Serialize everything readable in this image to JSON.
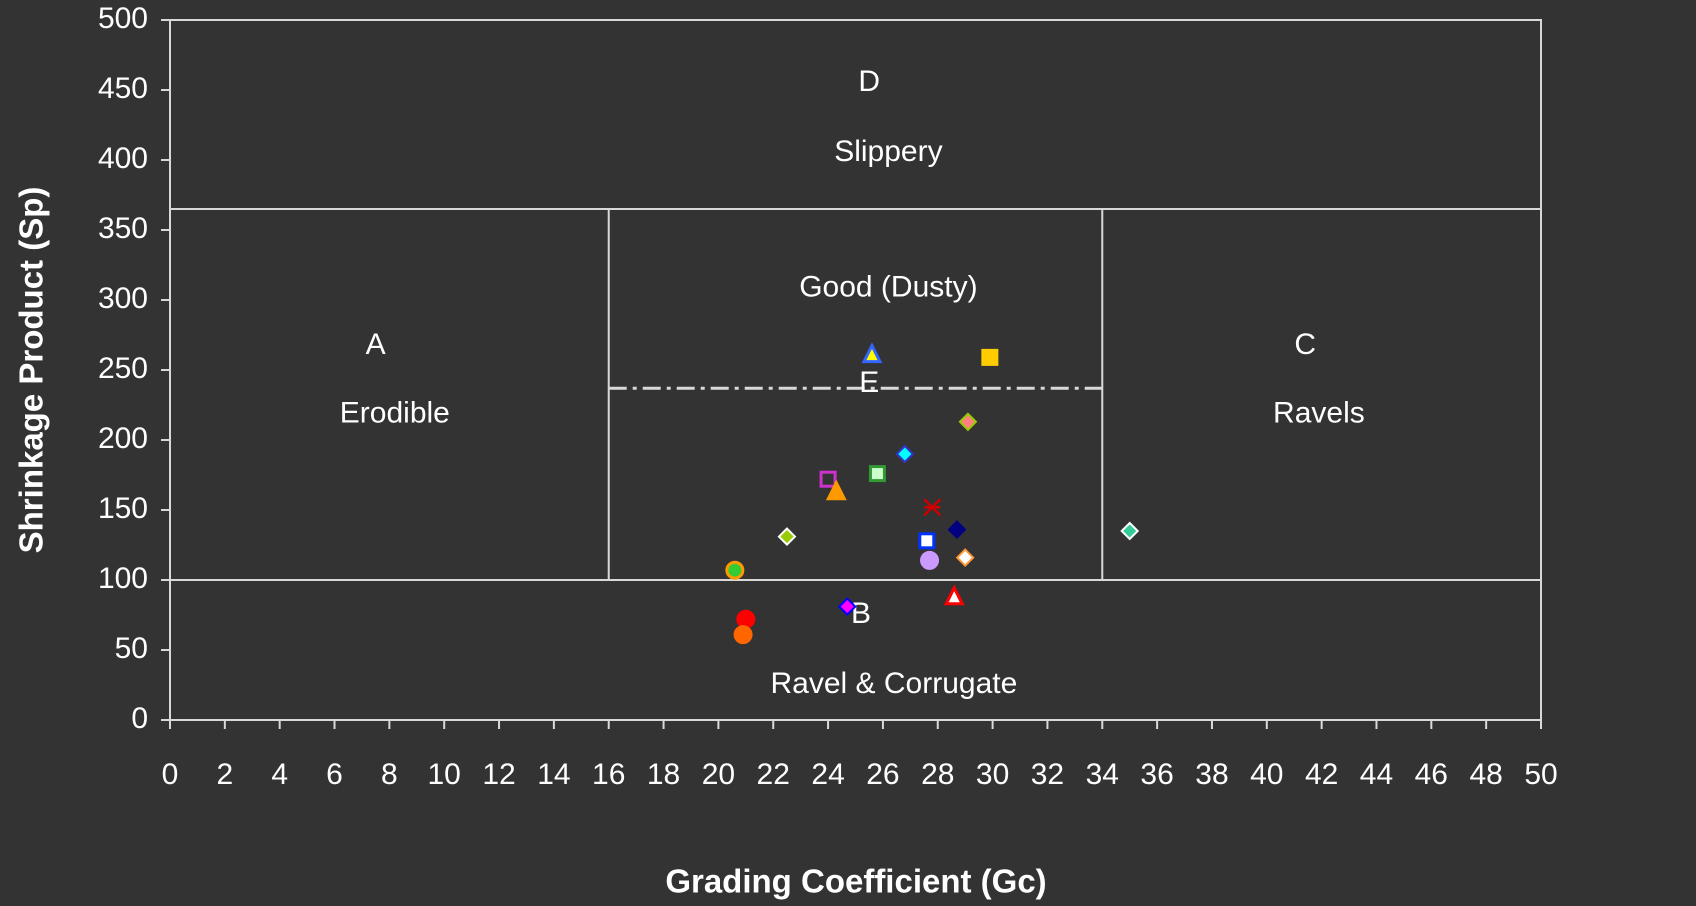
{
  "chart_data": {
    "type": "scatter",
    "xlabel": "Grading Coefficient (Gc)",
    "ylabel": "Shrinkage Product (Sp)",
    "xlim": [
      0,
      50
    ],
    "xticks": [
      0,
      2,
      4,
      6,
      8,
      10,
      12,
      14,
      16,
      18,
      20,
      22,
      24,
      26,
      28,
      30,
      32,
      34,
      36,
      38,
      40,
      42,
      44,
      46,
      48,
      50
    ],
    "ylim": [
      0,
      500
    ],
    "yticks": [
      0,
      50,
      100,
      150,
      200,
      250,
      300,
      350,
      400,
      450,
      500
    ],
    "grid": false,
    "zone_lines": {
      "y": [
        365,
        100
      ],
      "x": [
        16,
        34
      ],
      "dashed_y": 237
    },
    "annotations": [
      "D",
      "Slippery",
      "Good (Dusty)",
      "A",
      "Erodible",
      "E",
      "C",
      "Ravels",
      "B",
      "Ravel & Corrugate"
    ],
    "x": [
      20.6,
      21.0,
      20.9,
      22.5,
      24.0,
      24.3,
      24.7,
      25.6,
      25.8,
      26.8,
      27.6,
      27.7,
      27.8,
      28.6,
      28.7,
      29.0,
      29.1,
      29.9,
      35.0
    ],
    "values": [
      107,
      72,
      61,
      131,
      172,
      163,
      81,
      261,
      176,
      190,
      128,
      114,
      152,
      88,
      136,
      116,
      213,
      259,
      135
    ],
    "markers": [
      "circle",
      "circle",
      "circle",
      "diamond",
      "square",
      "triangle",
      "diamond",
      "triangle",
      "square",
      "diamond",
      "square",
      "circle",
      "star",
      "triangle",
      "diamond",
      "diamond",
      "diamond",
      "square",
      "diamond"
    ],
    "colors": [
      "#33cc33",
      "#ff0000",
      "#ff6600",
      "#99cc00",
      "none",
      "#ff9900",
      "#ff00ff",
      "#ffff00",
      "#ccffcc",
      "#00ffff",
      "#ffffff",
      "#cc99ff",
      "none",
      "#ffffff",
      "#000080",
      "#ffffff",
      "#ff8080",
      "#ffcc00",
      "#33cc99"
    ],
    "edge_colors": [
      "#ff9900",
      "#ff0000",
      "#ff6600",
      "#ffffff",
      "#cc33cc",
      "#ff9900",
      "#0000ff",
      "#3366ff",
      "#339933",
      "#3333cc",
      "#0033ff",
      "#cc99ff",
      "#cc0000",
      "#ff0000",
      "#000080",
      "#ff9933",
      "#99cc00",
      "#ffcc00",
      "#ffffff"
    ]
  }
}
